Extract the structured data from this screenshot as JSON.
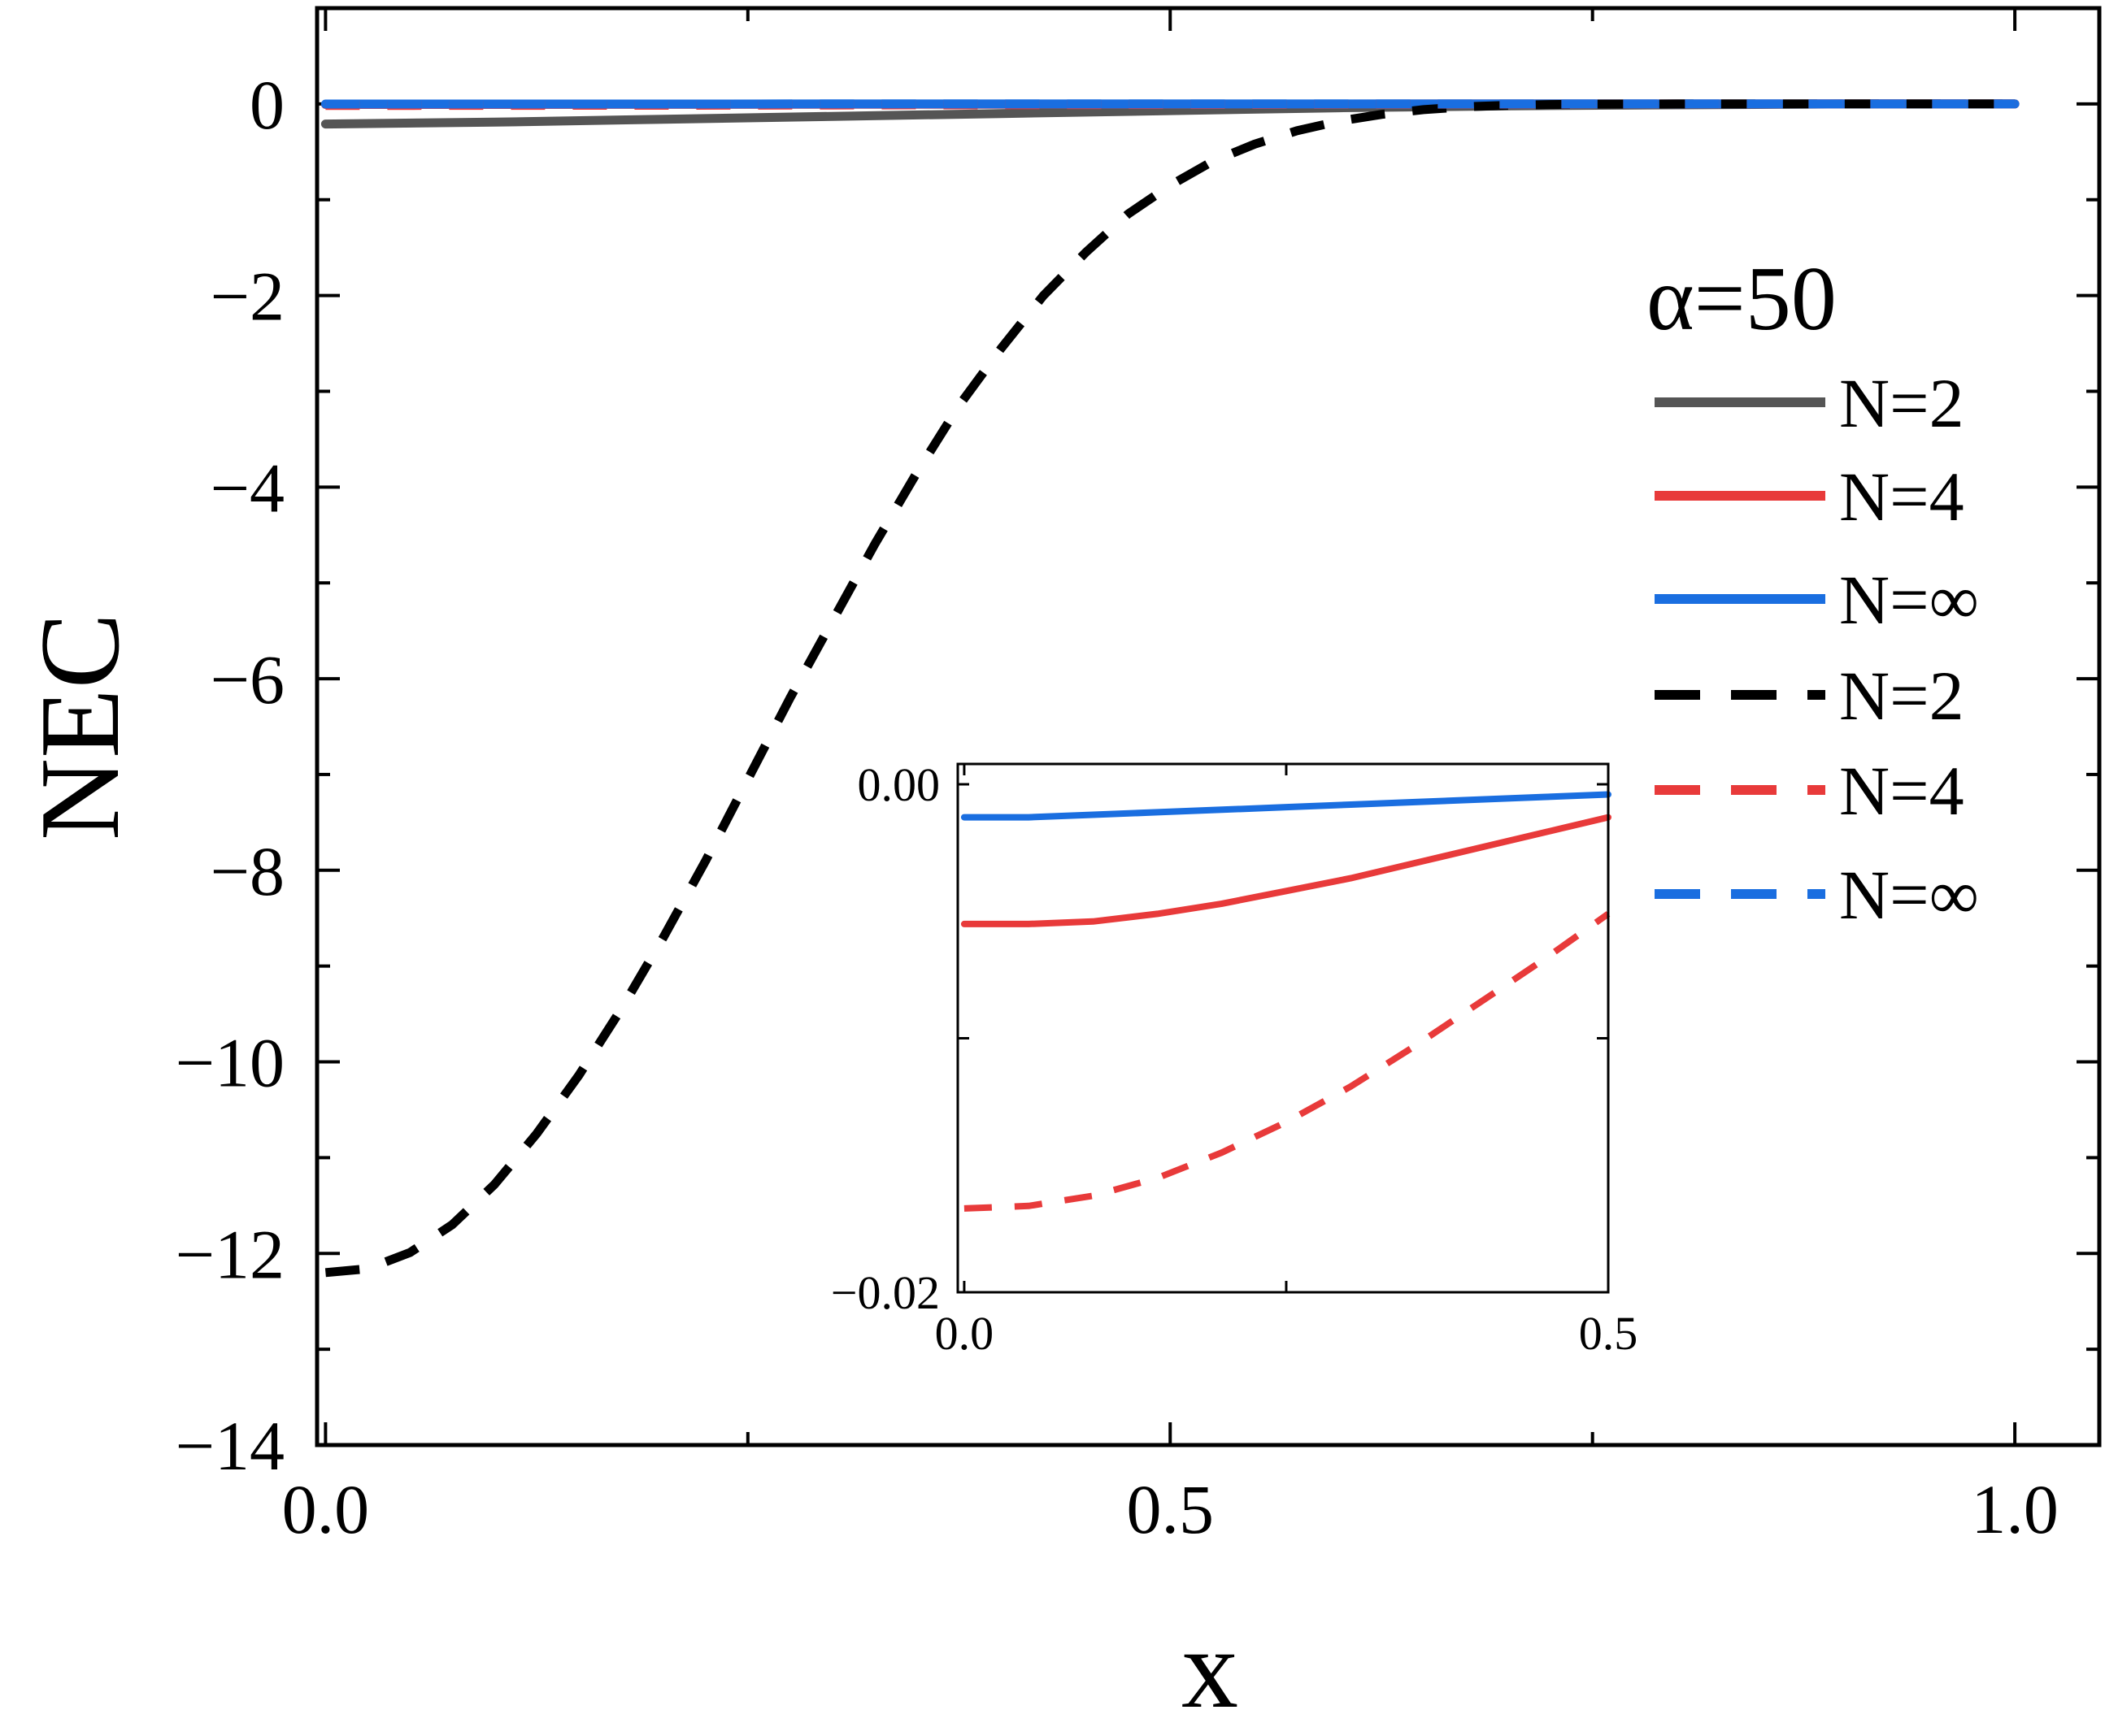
{
  "chart_data": {
    "type": "line",
    "xlabel": "x",
    "ylabel": "NEC",
    "xlim": [
      -0.005,
      1.05
    ],
    "ylim": [
      -14,
      1
    ],
    "x_ticks": [
      0.0,
      0.5,
      1.0
    ],
    "x_tick_labels": [
      "0.0",
      "0.5",
      "1.0"
    ],
    "y_ticks": [
      -14,
      -12,
      -10,
      -8,
      -6,
      -4,
      -2,
      0
    ],
    "y_tick_labels": [
      "−14",
      "−12",
      "−10",
      "−8",
      "−6",
      "−4",
      "−2",
      "0"
    ],
    "grid": false,
    "legend": {
      "title": "α=50",
      "position": "right",
      "entries": [
        {
          "label": "N=2",
          "color": "#555555",
          "style": "solid"
        },
        {
          "label": "N=4",
          "color": "#e83a3a",
          "style": "solid"
        },
        {
          "label": "N=∞",
          "color": "#1a6ee0",
          "style": "solid"
        },
        {
          "label": "N=2",
          "color": "#000000",
          "style": "dashed"
        },
        {
          "label": "N=4",
          "color": "#e83a3a",
          "style": "dashed"
        },
        {
          "label": "N=∞",
          "color": "#1a6ee0",
          "style": "dashed"
        }
      ]
    },
    "series": [
      {
        "color": "#555555",
        "style": "solid",
        "x": [
          0.0,
          0.1,
          0.2,
          0.3,
          0.4,
          0.5,
          0.6,
          0.7,
          0.8,
          0.9,
          1.0
        ],
        "y": [
          -0.21,
          -0.19,
          -0.16,
          -0.13,
          -0.1,
          -0.07,
          -0.04,
          -0.02,
          -0.01,
          0.0,
          0.0
        ]
      },
      {
        "color": "#e83a3a",
        "style": "solid",
        "x": [
          0.0,
          0.1,
          0.2,
          0.3,
          0.4,
          0.5,
          0.6,
          0.7,
          0.8,
          0.9,
          1.0
        ],
        "y": [
          -0.0055,
          -0.005,
          -0.0045,
          -0.0035,
          -0.0025,
          -0.0018,
          -0.001,
          -0.0005,
          -0.0002,
          0.0,
          0.0
        ]
      },
      {
        "color": "#1a6ee0",
        "style": "solid",
        "x": [
          0.0,
          0.1,
          0.2,
          0.3,
          0.4,
          0.5,
          0.6,
          0.7,
          0.8,
          0.9,
          1.0
        ],
        "y": [
          -0.0013,
          -0.0011,
          -0.0009,
          -0.0007,
          -0.0005,
          -0.0003,
          -0.0001,
          0.0,
          0.0,
          0.0,
          0.0
        ]
      },
      {
        "color": "#000000",
        "style": "dashed",
        "x": [
          0.0,
          0.025,
          0.05,
          0.075,
          0.1,
          0.125,
          0.15,
          0.175,
          0.2,
          0.225,
          0.25,
          0.275,
          0.3,
          0.325,
          0.35,
          0.375,
          0.4,
          0.425,
          0.45,
          0.475,
          0.5,
          0.525,
          0.55,
          0.575,
          0.6,
          0.625,
          0.65,
          0.675,
          0.7,
          0.725,
          0.75,
          0.8,
          0.85,
          0.9,
          1.0
        ],
        "y": [
          -12.2,
          -12.16,
          -11.99,
          -11.7,
          -11.28,
          -10.75,
          -10.14,
          -9.45,
          -8.7,
          -7.9,
          -7.05,
          -6.2,
          -5.4,
          -4.6,
          -3.85,
          -3.15,
          -2.55,
          -2.0,
          -1.55,
          -1.15,
          -0.85,
          -0.6,
          -0.42,
          -0.28,
          -0.18,
          -0.11,
          -0.06,
          -0.03,
          -0.015,
          -0.006,
          -0.002,
          0.0,
          0.0,
          0.0,
          0.0
        ]
      },
      {
        "color": "#e83a3a",
        "style": "dashed",
        "x": [
          0.0,
          0.1,
          0.2,
          0.3,
          0.4,
          0.5,
          0.6,
          0.7,
          0.8,
          0.9,
          1.0
        ],
        "y": [
          -0.016,
          -0.015,
          -0.0135,
          -0.0115,
          -0.009,
          -0.0065,
          -0.004,
          -0.0022,
          -0.001,
          -0.0003,
          0.0
        ]
      },
      {
        "color": "#1a6ee0",
        "style": "dashed",
        "x": [
          0.0,
          0.1,
          0.2,
          0.3,
          0.4,
          0.5,
          0.6,
          0.7,
          0.8,
          0.9,
          1.0
        ],
        "y": [
          -0.0012,
          -0.001,
          -0.0008,
          -0.0006,
          -0.0004,
          -0.0003,
          -0.0001,
          0.0,
          0.0,
          0.0,
          0.0
        ]
      }
    ],
    "inset": {
      "type": "line",
      "xlim": [
        -0.005,
        0.5
      ],
      "ylim": [
        -0.02,
        0.0008
      ],
      "x_ticks": [
        0.0,
        0.25,
        0.5
      ],
      "x_tick_labels": [
        "0.0",
        "",
        "0.5"
      ],
      "y_ticks": [
        -0.02,
        -0.01,
        0.0
      ],
      "y_tick_labels": [
        "−0.02",
        "",
        "0.00"
      ],
      "series": [
        {
          "color": "#1a6ee0",
          "style": "solid",
          "x": [
            0.0,
            0.05,
            0.1,
            0.15,
            0.2,
            0.25,
            0.3,
            0.35,
            0.4,
            0.45,
            0.5
          ],
          "y": [
            -0.0013,
            -0.0013,
            -0.0012,
            -0.0011,
            -0.001,
            -0.0009,
            -0.0008,
            -0.0007,
            -0.0006,
            -0.0005,
            -0.0004
          ]
        },
        {
          "color": "#e83a3a",
          "style": "solid",
          "x": [
            0.0,
            0.05,
            0.1,
            0.15,
            0.2,
            0.25,
            0.3,
            0.35,
            0.4,
            0.45,
            0.5
          ],
          "y": [
            -0.0055,
            -0.0055,
            -0.0054,
            -0.0051,
            -0.0047,
            -0.0042,
            -0.0037,
            -0.0031,
            -0.0025,
            -0.0019,
            -0.0013
          ]
        },
        {
          "color": "#e83a3a",
          "style": "dashed",
          "x": [
            0.0,
            0.05,
            0.1,
            0.15,
            0.2,
            0.25,
            0.3,
            0.35,
            0.4,
            0.45,
            0.5
          ],
          "y": [
            -0.0167,
            -0.0166,
            -0.0162,
            -0.0155,
            -0.0145,
            -0.0133,
            -0.0119,
            -0.0103,
            -0.0086,
            -0.0069,
            -0.0051
          ]
        }
      ]
    }
  }
}
